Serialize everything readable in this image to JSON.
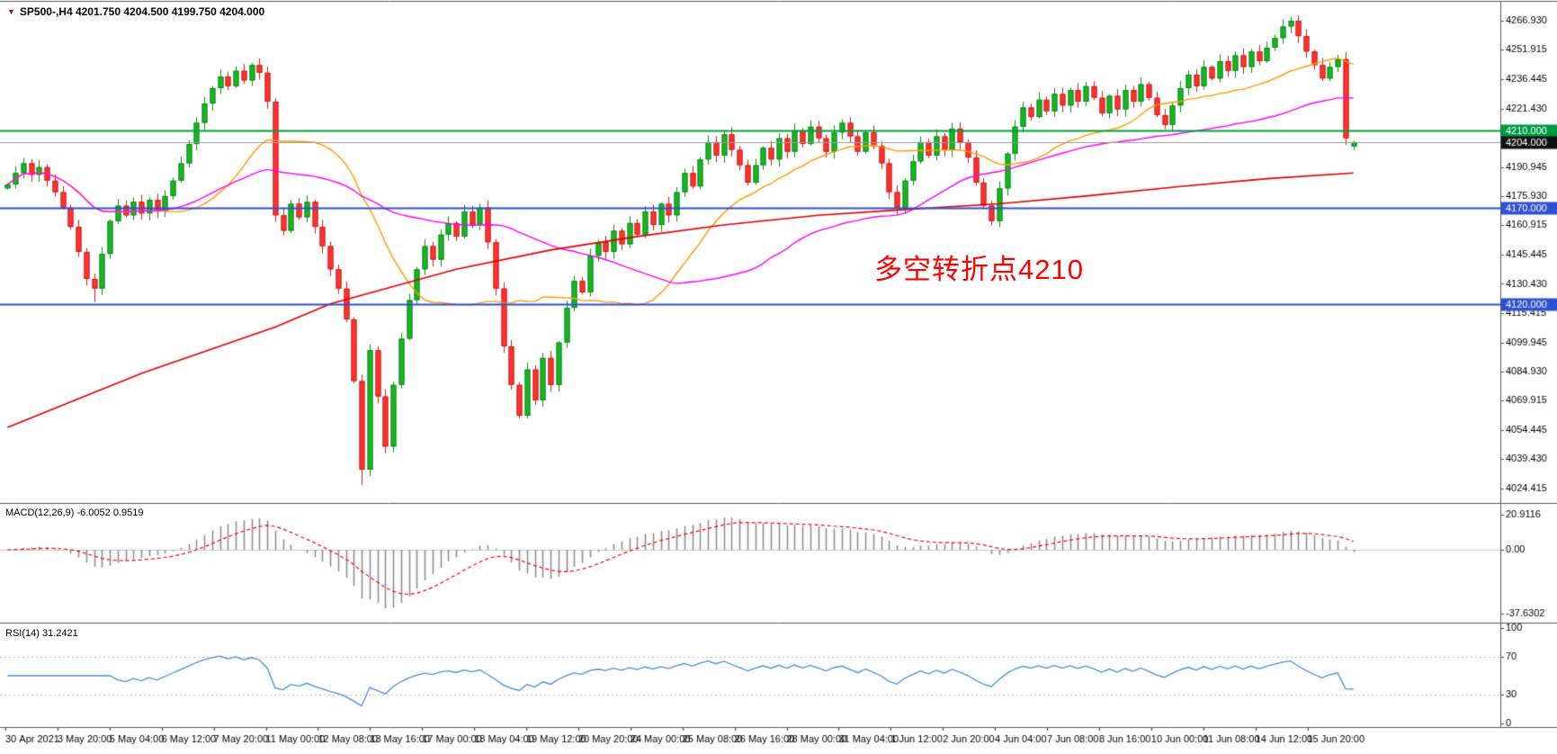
{
  "header": {
    "marker_icon": "▼",
    "title": "SP500-,H4 4201.750 4204.500 4199.750 4204.000"
  },
  "main": {
    "annotation": "多空转折点4210",
    "y_ticks": [
      "4266.930",
      "4251.915",
      "4236.445",
      "4221.430",
      "4190.945",
      "4175.930",
      "4160.915",
      "4145.445",
      "4130.430",
      "4115.415",
      "4099.945",
      "4084.930",
      "4069.915",
      "4054.445",
      "4039.430",
      "4024.415"
    ],
    "lines": [
      {
        "value": 4210,
        "label": "4210.000",
        "line_color": "#00a13c",
        "width": 2,
        "badge_bg": "#009a44"
      },
      {
        "value": 4204,
        "label": "4204.000",
        "line_color": "#9a9a9a",
        "width": 1,
        "badge_bg": "#111111"
      },
      {
        "value": 4170,
        "label": "4170.000",
        "line_color": "#2e51d4",
        "width": 2,
        "badge_bg": "#2e51d4"
      },
      {
        "value": 4120,
        "label": "4120.000",
        "line_color": "#2e51d4",
        "width": 2,
        "badge_bg": "#2e51d4"
      }
    ]
  },
  "indicators": {
    "macd": {
      "label": "MACD(12,26,9) -6.0052 0.9519",
      "fast": 12,
      "slow": 26,
      "signal": 9,
      "value": -6.0052,
      "signal_value": 0.9519,
      "range": [
        -40,
        24
      ],
      "y_ticks": [
        {
          "v": 20.9116,
          "t": "20.9116"
        },
        {
          "v": 0,
          "t": "0.00"
        },
        {
          "v": -37.6302,
          "t": "-37.6302"
        }
      ]
    },
    "rsi": {
      "label": "RSI(14) 31.2421",
      "period": 14,
      "value": 31.2421,
      "range": [
        0,
        100
      ],
      "levels": [
        30,
        70
      ],
      "y_ticks": [
        {
          "v": 100,
          "t": "100"
        },
        {
          "v": 70,
          "t": "70"
        },
        {
          "v": 30,
          "t": "30"
        },
        {
          "v": 0,
          "t": "0"
        }
      ]
    }
  },
  "x_axis": {
    "labels": [
      "30 Apr 2021",
      "3 May 20:00",
      "5 May 04:00",
      "6 May 12:00",
      "7 May 20:00",
      "11 May 00:00",
      "12 May 08:00",
      "13 May 16:00",
      "17 May 00:00",
      "18 May 04:00",
      "19 May 12:00",
      "20 May 20:00",
      "24 May 00:00",
      "25 May 08:00",
      "26 May 16:00",
      "28 May 00:00",
      "31 May 04:00",
      "1 Jun 12:00",
      "2 Jun 20:00",
      "4 Jun 04:00",
      "7 Jun 08:00",
      "8 Jun 16:00",
      "10 Jun 00:00",
      "11 Jun 08:00",
      "14 Jun 12:00",
      "15 Jun 20:00"
    ]
  },
  "chart_data": {
    "type": "candlestick",
    "symbol": "SP500-",
    "timeframe": "H4",
    "price_range": [
      4020,
      4274
    ],
    "current_bar": {
      "open": 4201.75,
      "high": 4204.5,
      "low": 4199.75,
      "close": 4204.0
    },
    "first_open": 4180,
    "closes": [
      4182,
      4188,
      4193,
      4187,
      4191,
      4184,
      4178,
      4170,
      4160,
      4147,
      4133,
      4128,
      4146,
      4163,
      4171,
      4166,
      4173,
      4167,
      4174,
      4168,
      4176,
      4184,
      4193,
      4203,
      4214,
      4224,
      4232,
      4238,
      4233,
      4241,
      4236,
      4244,
      4240,
      4225,
      4166,
      4158,
      4172,
      4165,
      4173,
      4160,
      4150,
      4138,
      4128,
      4112,
      4080,
      4034,
      4096,
      4072,
      4046,
      4078,
      4102,
      4122,
      4138,
      4150,
      4143,
      4156,
      4162,
      4155,
      4168,
      4161,
      4170,
      4152,
      4128,
      4098,
      4078,
      4062,
      4086,
      4070,
      4092,
      4078,
      4100,
      4118,
      4132,
      4126,
      4145,
      4152,
      4147,
      4158,
      4151,
      4162,
      4156,
      4168,
      4161,
      4172,
      4166,
      4178,
      4188,
      4181,
      4195,
      4204,
      4197,
      4208,
      4200,
      4192,
      4183,
      4192,
      4201,
      4195,
      4206,
      4199,
      4210,
      4203,
      4212,
      4206,
      4199,
      4209,
      4214,
      4207,
      4199,
      4209,
      4202,
      4193,
      4178,
      4170,
      4184,
      4194,
      4204,
      4197,
      4207,
      4200,
      4211,
      4204,
      4196,
      4183,
      4171,
      4163,
      4180,
      4198,
      4212,
      4222,
      4217,
      4226,
      4220,
      4229,
      4223,
      4231,
      4225,
      4233,
      4227,
      4219,
      4228,
      4221,
      4231,
      4225,
      4234,
      4227,
      4218,
      4213,
      4223,
      4232,
      4239,
      4233,
      4243,
      4237,
      4246,
      4241,
      4249,
      4243,
      4251,
      4246,
      4253,
      4258,
      4264,
      4267,
      4259,
      4251,
      4244,
      4237,
      4243,
      4247,
      4206,
      4204
    ],
    "wick_overrides": {
      "11": {
        "low": 4121
      },
      "45": {
        "low": 4026
      },
      "163": {
        "high": 4269
      }
    },
    "ma_fast": {
      "period": 20,
      "color": "#ff9c00"
    },
    "ma_mid": {
      "period": 52,
      "color": "#ff00ff"
    },
    "ma_slow": {
      "color": "#e00000",
      "waypoints": [
        [
          0,
          4056
        ],
        [
          17,
          4084
        ],
        [
          34,
          4108
        ],
        [
          41,
          4120
        ],
        [
          57,
          4138
        ],
        [
          69,
          4148
        ],
        [
          80,
          4155
        ],
        [
          91,
          4161
        ],
        [
          103,
          4166
        ],
        [
          114,
          4169
        ],
        [
          126,
          4172
        ],
        [
          137,
          4176
        ],
        [
          149,
          4181
        ],
        [
          160,
          4185
        ],
        [
          171,
          4188
        ]
      ]
    },
    "horizontal_lines": [
      4210,
      4204,
      4170,
      4120
    ],
    "colors": {
      "up": "#18b526",
      "up_edge": "#0c8a18",
      "down": "#ff3232",
      "down_edge": "#cf1d1d",
      "macd_hist": "#8f8f8f",
      "macd_signal": "#ff0000",
      "rsi": "#4a90d9",
      "axis_text": "#000000",
      "frame": "#5a5a5a"
    }
  }
}
